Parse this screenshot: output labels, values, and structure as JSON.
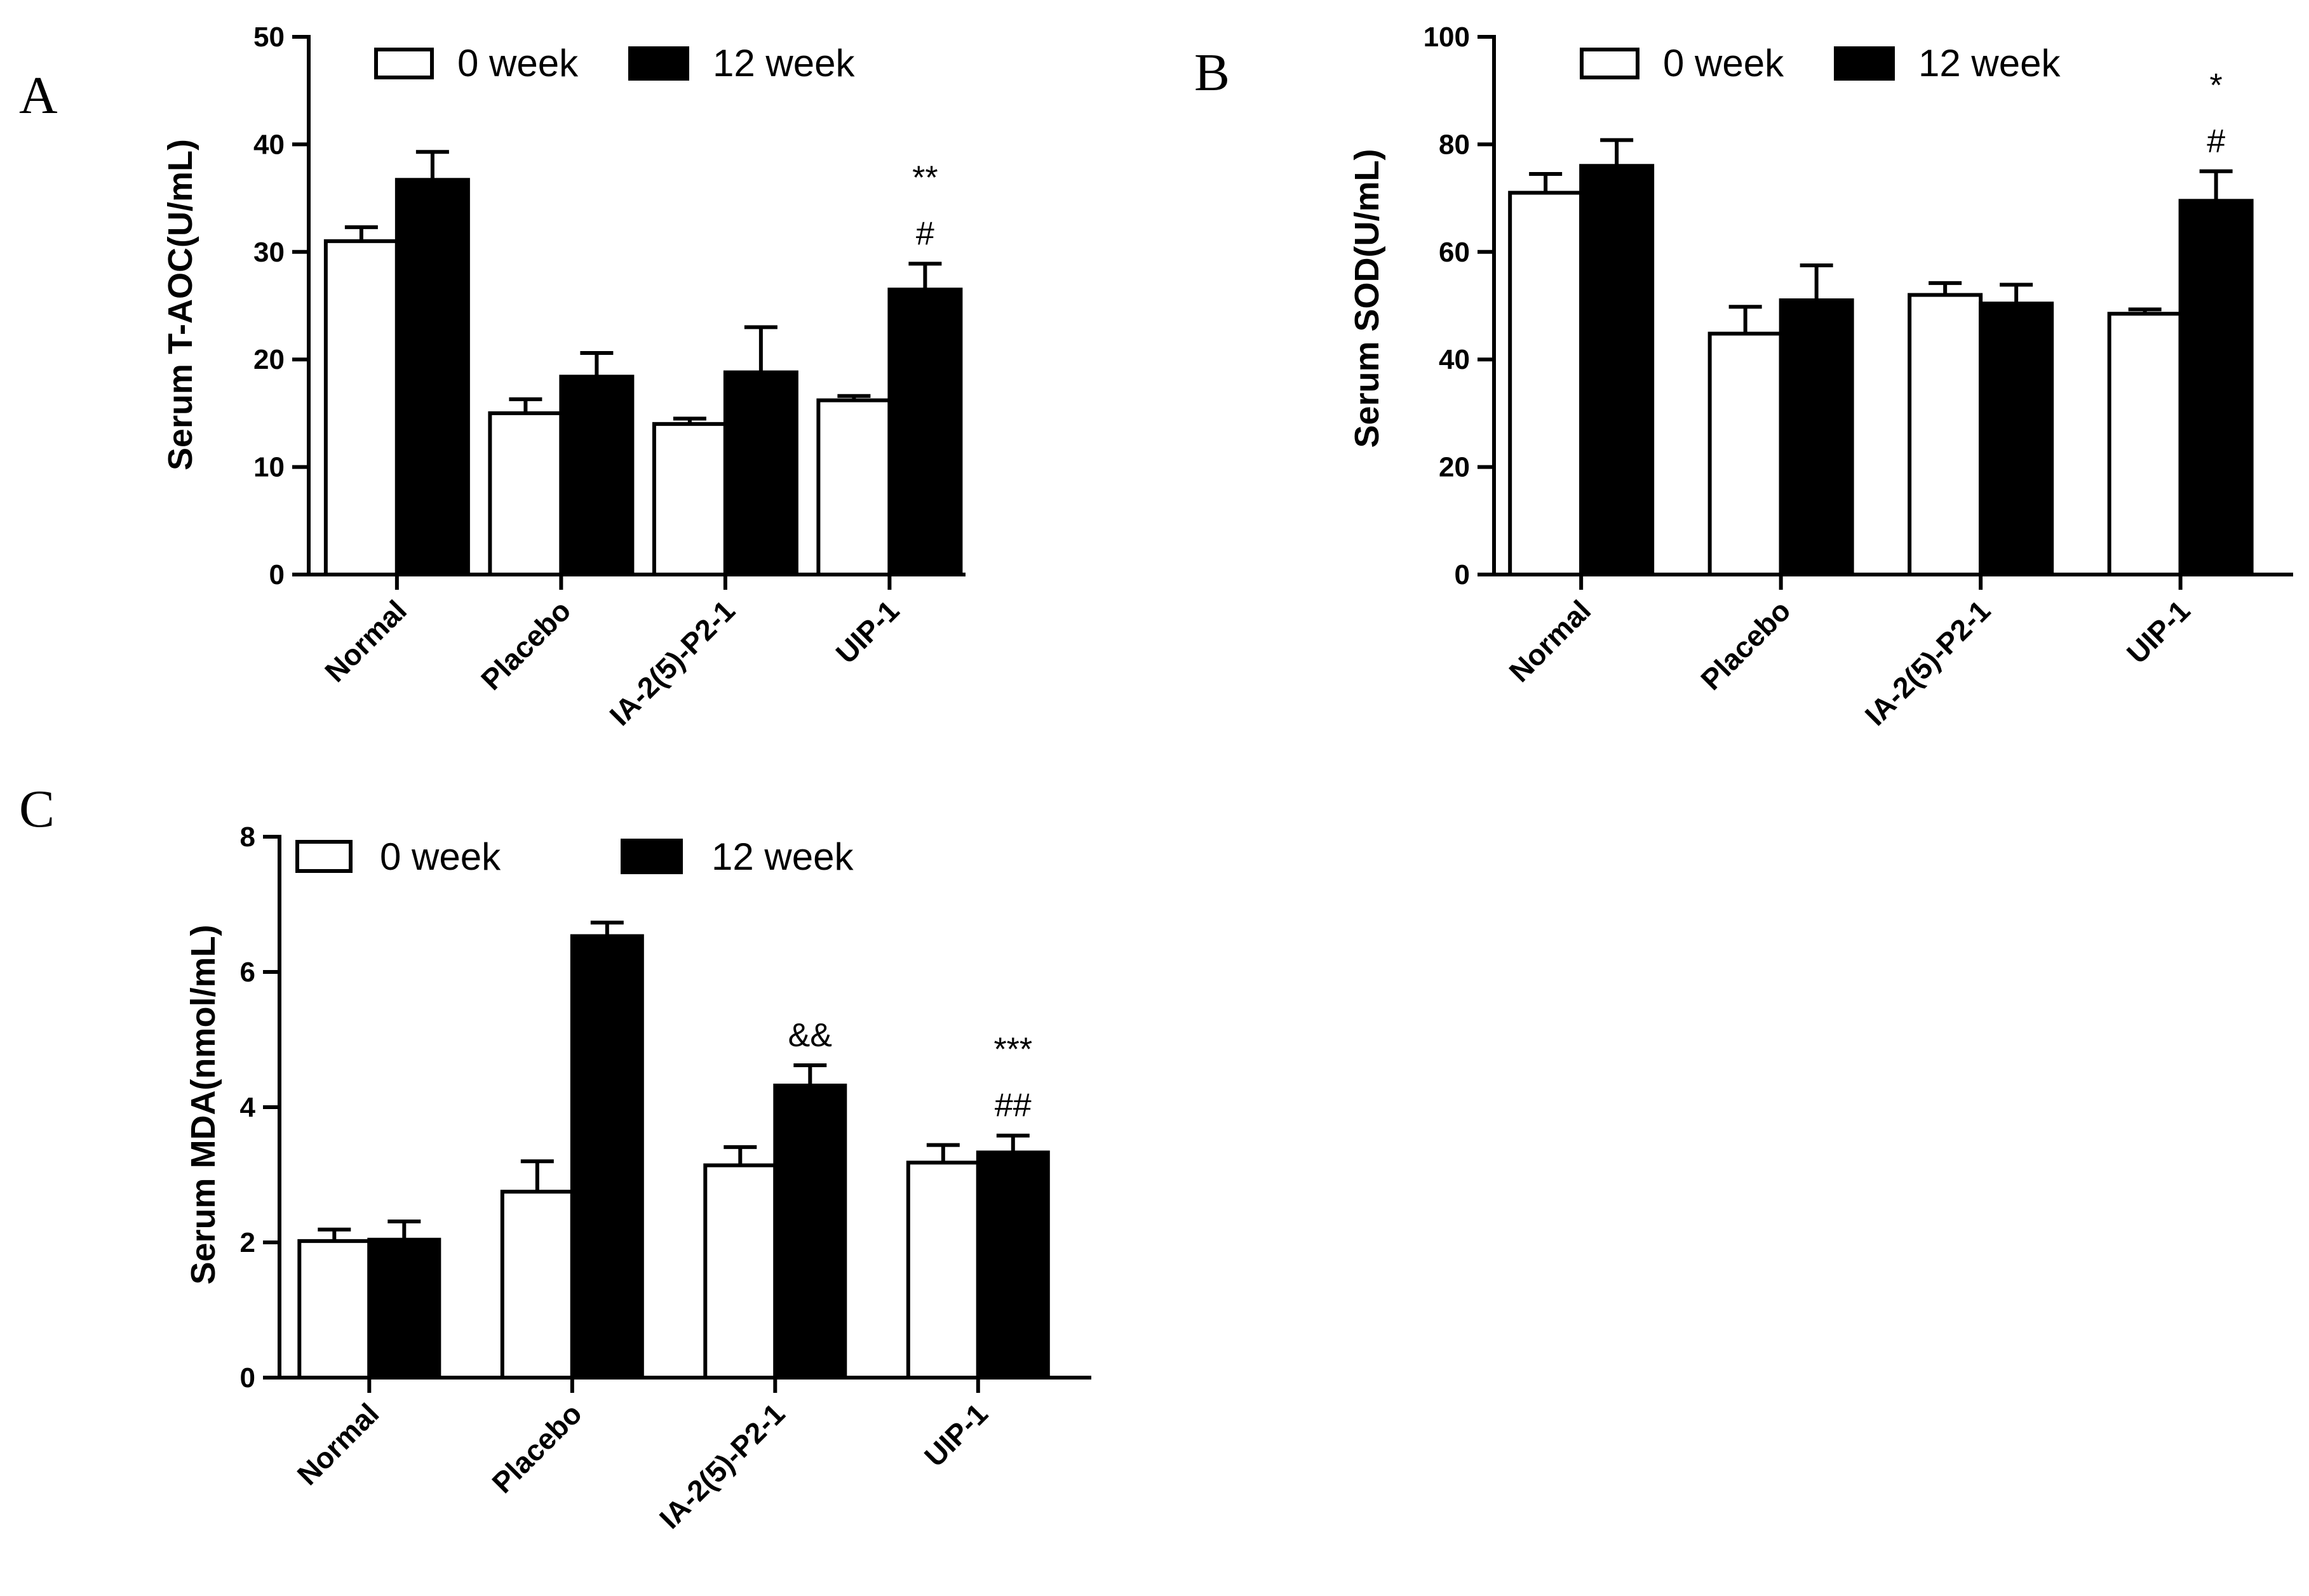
{
  "chart_data": [
    {
      "panel": "A",
      "type": "bar",
      "ylabel": "Serum T-AOC(U/mL)",
      "ylim": [
        0,
        50
      ],
      "yticks": [
        0,
        10,
        20,
        30,
        40,
        50
      ],
      "categories": [
        "Normal",
        "Placebo",
        "IA-2(5)-P2-1",
        "UIP-1"
      ],
      "series": [
        {
          "name": "0 week",
          "color": "#ffffff",
          "values": [
            31.0,
            15.0,
            14.0,
            16.2
          ],
          "errors": [
            1.3,
            1.3,
            0.5,
            0.4
          ]
        },
        {
          "name": "12 week",
          "color": "#000000",
          "values": [
            36.7,
            18.4,
            18.8,
            26.5
          ],
          "errors": [
            2.6,
            2.2,
            4.2,
            2.4
          ]
        }
      ],
      "annotations": [
        {
          "category": "UIP-1",
          "series": "12 week",
          "lines": [
            "**",
            "#"
          ]
        }
      ]
    },
    {
      "panel": "B",
      "type": "bar",
      "ylabel": "Serum  SOD(U/mL)",
      "ylim": [
        0,
        100
      ],
      "yticks": [
        0,
        20,
        40,
        60,
        80,
        100
      ],
      "categories": [
        "Normal",
        "Placebo",
        "IA-2(5)-P2-1",
        "UIP-1"
      ],
      "series": [
        {
          "name": "0 week",
          "color": "#ffffff",
          "values": [
            71.0,
            44.8,
            52.0,
            48.5
          ],
          "errors": [
            3.5,
            5.0,
            2.2,
            0.8
          ]
        },
        {
          "name": "12 week",
          "color": "#000000",
          "values": [
            76.0,
            51.0,
            50.4,
            69.5
          ],
          "errors": [
            4.8,
            6.5,
            3.5,
            5.5
          ]
        }
      ],
      "annotations": [
        {
          "category": "UIP-1",
          "series": "12 week",
          "lines": [
            "*",
            "#"
          ]
        }
      ]
    },
    {
      "panel": "C",
      "type": "bar",
      "ylabel": "Serum MDA(nmol/mL)",
      "ylim": [
        0,
        8
      ],
      "yticks": [
        0,
        2,
        4,
        6,
        8
      ],
      "categories": [
        "Normal",
        "Placebo",
        "IA-2(5)-P2-1",
        "UIP-1"
      ],
      "series": [
        {
          "name": "0 week",
          "color": "#ffffff",
          "values": [
            2.02,
            2.75,
            3.14,
            3.18
          ],
          "errors": [
            0.17,
            0.45,
            0.27,
            0.26
          ]
        },
        {
          "name": "12 week",
          "color": "#000000",
          "values": [
            2.04,
            6.53,
            4.32,
            3.33
          ],
          "errors": [
            0.27,
            0.2,
            0.3,
            0.25
          ]
        }
      ],
      "annotations": [
        {
          "category": "IA-2(5)-P2-1",
          "series": "12 week",
          "lines": [
            "&&"
          ]
        },
        {
          "category": "UIP-1",
          "series": "12 week",
          "lines": [
            "***",
            "##"
          ]
        }
      ]
    }
  ]
}
